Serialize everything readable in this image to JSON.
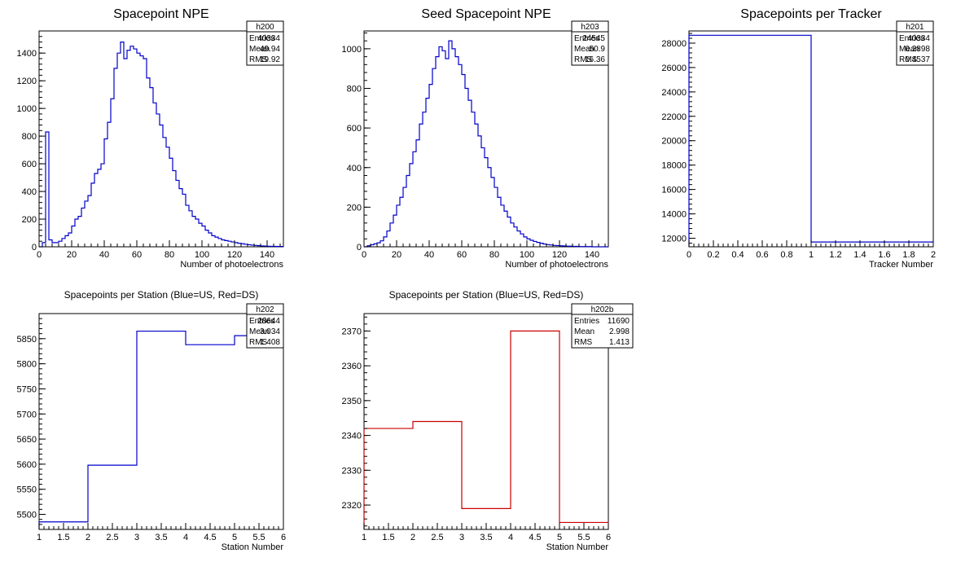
{
  "chart_data": [
    {
      "id": "h200",
      "type": "histogram",
      "title": "Spacepoint NPE",
      "xlabel": "Number of photoelectrons",
      "ylabel": "",
      "xlim": [
        0,
        150
      ],
      "ylim": [
        0,
        1560
      ],
      "xticks": [
        0,
        20,
        40,
        60,
        80,
        100,
        120,
        140
      ],
      "yticks": [
        0,
        200,
        400,
        600,
        800,
        1000,
        1200,
        1400
      ],
      "color": "#0000cc",
      "bin_width": 2,
      "x_start": 0,
      "values": [
        0,
        30,
        830,
        50,
        30,
        30,
        40,
        60,
        80,
        100,
        150,
        200,
        220,
        280,
        330,
        370,
        460,
        530,
        560,
        600,
        780,
        900,
        1070,
        1290,
        1400,
        1480,
        1360,
        1420,
        1450,
        1430,
        1400,
        1380,
        1360,
        1220,
        1150,
        1040,
        960,
        880,
        790,
        720,
        640,
        550,
        480,
        420,
        380,
        300,
        260,
        220,
        200,
        170,
        150,
        120,
        100,
        80,
        70,
        60,
        50,
        45,
        40,
        35,
        30,
        25,
        22,
        18,
        15,
        12,
        10,
        8,
        6,
        5,
        4,
        3,
        3,
        2,
        2
      ],
      "stats": {
        "name": "h200",
        "entries": "40334",
        "mean": "49.94",
        "rms": "19.92"
      }
    },
    {
      "id": "h203",
      "type": "histogram",
      "title": "Seed Spacepoint NPE",
      "xlabel": "Number of photoelectrons",
      "ylabel": "",
      "xlim": [
        0,
        150
      ],
      "ylim": [
        0,
        1090
      ],
      "xticks": [
        0,
        20,
        40,
        60,
        80,
        100,
        120,
        140
      ],
      "yticks": [
        0,
        200,
        400,
        600,
        800,
        1000
      ],
      "color": "#0000cc",
      "bin_width": 2,
      "x_start": 0,
      "values": [
        0,
        5,
        10,
        15,
        20,
        30,
        50,
        80,
        120,
        160,
        210,
        250,
        300,
        360,
        420,
        480,
        540,
        620,
        680,
        750,
        820,
        900,
        960,
        1010,
        990,
        950,
        1040,
        1000,
        960,
        920,
        870,
        800,
        740,
        680,
        620,
        560,
        500,
        450,
        400,
        350,
        300,
        250,
        210,
        180,
        150,
        120,
        100,
        80,
        65,
        50,
        40,
        33,
        27,
        22,
        18,
        14,
        11,
        9,
        7,
        6,
        5,
        4,
        3,
        3,
        2,
        2,
        1,
        1,
        1,
        1,
        0,
        0,
        0,
        0,
        0
      ],
      "stats": {
        "name": "h203",
        "entries": "24545",
        "mean": "50.9",
        "rms": "16.36"
      }
    },
    {
      "id": "h201",
      "type": "histogram",
      "title": "Spacepoints per Tracker",
      "xlabel": "Tracker Number",
      "ylabel": "",
      "xlim": [
        0,
        2
      ],
      "ylim": [
        11300,
        29000
      ],
      "xticks": [
        0,
        0.2,
        0.4,
        0.6,
        0.8,
        1,
        1.2,
        1.4,
        1.6,
        1.8,
        2
      ],
      "yticks": [
        12000,
        14000,
        16000,
        18000,
        20000,
        22000,
        24000,
        26000,
        28000
      ],
      "color": "#0000cc",
      "bin_width": 1,
      "x_start": 0,
      "values": [
        28644,
        11690
      ],
      "stats": {
        "name": "h201",
        "entries": "40334",
        "mean": "0.2898",
        "rms": "0.4537"
      }
    },
    {
      "id": "h202",
      "type": "histogram",
      "title": "Spacepoints per Station (Blue=US, Red=DS)",
      "xlabel": "Station Number",
      "ylabel": "",
      "xlim": [
        1,
        6
      ],
      "ylim": [
        5470,
        5900
      ],
      "xticks": [
        1,
        1.5,
        2,
        2.5,
        3,
        3.5,
        4,
        4.5,
        5,
        5.5,
        6
      ],
      "yticks": [
        5500,
        5550,
        5600,
        5650,
        5700,
        5750,
        5800,
        5850
      ],
      "color": "#0000cc",
      "bin_width": 1,
      "x_start": 1,
      "values": [
        5485,
        5598,
        5865,
        5838,
        5856
      ],
      "stats": {
        "name": "h202",
        "entries": "28644",
        "mean": "3.034",
        "rms": "1.408"
      }
    },
    {
      "id": "h202b",
      "type": "histogram",
      "title": "Spacepoints per Station (Blue=US, Red=DS)",
      "xlabel": "Station Number",
      "ylabel": "",
      "xlim": [
        1,
        6
      ],
      "ylim": [
        2313,
        2375
      ],
      "xticks": [
        1,
        1.5,
        2,
        2.5,
        3,
        3.5,
        4,
        4.5,
        5,
        5.5,
        6
      ],
      "yticks": [
        2320,
        2330,
        2340,
        2350,
        2360,
        2370
      ],
      "color": "#cc0000",
      "bin_width": 1,
      "x_start": 1,
      "values": [
        2342,
        2344,
        2319,
        2370,
        2315
      ],
      "stats": {
        "name": "h202b",
        "entries": "11690",
        "mean": "2.998",
        "rms": "1.413"
      }
    }
  ],
  "stats_labels": {
    "entries": "Entries",
    "mean": "Mean",
    "rms": "RMS"
  }
}
